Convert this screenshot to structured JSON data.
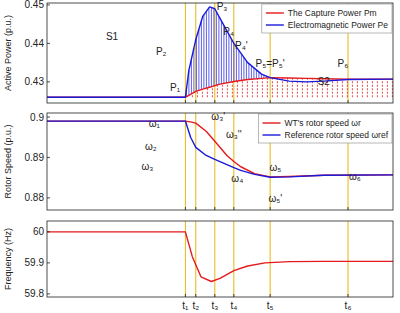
{
  "chart_data": [
    {
      "type": "line",
      "y_label": "Active Power (p.u.)",
      "x": [
        0,
        4,
        4.1,
        4.3,
        4.5,
        4.7,
        4.85,
        5,
        5.4,
        5.8,
        6.2,
        6.45,
        7,
        7.5,
        8,
        8.7,
        10
      ],
      "series": [
        {
          "name": "The Capture Power Pm",
          "color": "#e41a1c",
          "values": [
            0.426,
            0.426,
            0.4265,
            0.4275,
            0.4281,
            0.4286,
            0.429,
            0.4294,
            0.4301,
            0.4306,
            0.4309,
            0.4311,
            0.431,
            0.4309,
            0.4308,
            0.4307,
            0.4307
          ]
        },
        {
          "name": "Electromagnetic Power Pe",
          "color": "#1a1adb",
          "values": [
            0.426,
            0.426,
            0.433,
            0.441,
            0.447,
            0.4495,
            0.449,
            0.4465,
            0.44,
            0.435,
            0.432,
            0.4311,
            0.4302,
            0.43,
            0.4302,
            0.4306,
            0.4307
          ]
        }
      ],
      "xlim": [
        0,
        10
      ],
      "xticks": [
        {
          "value": 4,
          "label": "t₁"
        },
        {
          "value": 4.3,
          "label": "t₂"
        },
        {
          "value": 4.85,
          "label": "t₃"
        },
        {
          "value": 5.4,
          "label": "t₄"
        },
        {
          "value": 6.45,
          "label": "t₅"
        },
        {
          "value": 8.7,
          "label": "t₆"
        }
      ],
      "ylim": [
        0.4245,
        0.4505
      ],
      "yticks": [
        0.43,
        0.44,
        0.45
      ],
      "grid": "x",
      "tick_labels": "y",
      "legend": "upper right",
      "annotations": [
        {
          "text": "S1",
          "x": 1.88,
          "y": 0.4409
        },
        {
          "text": "P₁",
          "x": 3.7,
          "y": 0.4275
        },
        {
          "text": "P₂",
          "x": 3.3,
          "y": 0.437
        },
        {
          "text": "P₃",
          "x": 5.06,
          "y": 0.4487
        },
        {
          "text": "P₄",
          "x": 5.25,
          "y": 0.4422
        },
        {
          "text": "P₄'",
          "x": 5.62,
          "y": 0.4386
        },
        {
          "text": "P₅=P₅'",
          "x": 6.45,
          "y": 0.4338
        },
        {
          "text": "S2",
          "x": 8.0,
          "y": 0.4293
        },
        {
          "text": "P₆",
          "x": 8.55,
          "y": 0.4338
        }
      ]
    },
    {
      "type": "line",
      "y_label": "Rotor Speed (p.u.)",
      "x": [
        0,
        4,
        4.15,
        4.3,
        4.6,
        4.85,
        5.2,
        5.4,
        5.6,
        6,
        6.45,
        7,
        8,
        10
      ],
      "series": [
        {
          "name": "WT's rotor speed ωr",
          "color": "#e41a1c",
          "values": [
            0.899,
            0.899,
            0.8988,
            0.8985,
            0.8965,
            0.894,
            0.8905,
            0.889,
            0.8877,
            0.886,
            0.8852,
            0.8853,
            0.8856,
            0.8857
          ]
        },
        {
          "name": "Reference rotor speed ωref",
          "color": "#1a1adb",
          "values": [
            0.899,
            0.899,
            0.895,
            0.8925,
            0.8905,
            0.8895,
            0.8882,
            0.8875,
            0.8868,
            0.8858,
            0.8851,
            0.8852,
            0.8856,
            0.8857
          ]
        }
      ],
      "xlim": [
        0,
        10
      ],
      "xticks": [
        {
          "value": 4,
          "label": "t₁"
        },
        {
          "value": 4.3,
          "label": "t₂"
        },
        {
          "value": 4.85,
          "label": "t₃"
        },
        {
          "value": 5.4,
          "label": "t₄"
        },
        {
          "value": 6.45,
          "label": "t₅"
        },
        {
          "value": 8.7,
          "label": "t₆"
        }
      ],
      "ylim": [
        0.877,
        0.901
      ],
      "yticks": [
        0.88,
        0.89,
        0.9
      ],
      "grid": "x",
      "tick_labels": "y",
      "legend": "upper right",
      "annotations": [
        {
          "text": "ω₁",
          "x": 3.1,
          "y": 0.8975
        },
        {
          "text": "ω₂",
          "x": 3.0,
          "y": 0.8918
        },
        {
          "text": "ω₃",
          "x": 2.9,
          "y": 0.8869
        },
        {
          "text": "ω₃'",
          "x": 4.95,
          "y": 0.8993
        },
        {
          "text": "ω₃''",
          "x": 5.4,
          "y": 0.8948
        },
        {
          "text": "ω₄",
          "x": 5.5,
          "y": 0.8839
        },
        {
          "text": "ω₅",
          "x": 6.6,
          "y": 0.8866
        },
        {
          "text": "ω₅'",
          "x": 6.6,
          "y": 0.879
        },
        {
          "text": "ω₆",
          "x": 8.9,
          "y": 0.8843
        }
      ]
    },
    {
      "type": "line",
      "y_label": "Frequency (Hz)",
      "x": [
        0,
        4,
        4.2,
        4.45,
        4.75,
        5,
        5.4,
        5.8,
        6.3,
        7,
        8,
        10
      ],
      "series": [
        {
          "color": "#e41a1c",
          "values": [
            60,
            60,
            59.92,
            59.855,
            59.84,
            59.85,
            59.875,
            59.89,
            59.9,
            59.904,
            59.905,
            59.905
          ]
        }
      ],
      "xlim": [
        0,
        10
      ],
      "xticks": [
        {
          "value": 4,
          "label": "t₁"
        },
        {
          "value": 4.3,
          "label": "t₂"
        },
        {
          "value": 4.85,
          "label": "t₃"
        },
        {
          "value": 5.4,
          "label": "t₄"
        },
        {
          "value": 6.45,
          "label": "t₅"
        },
        {
          "value": 8.7,
          "label": "t₆"
        }
      ],
      "ylim": [
        59.79,
        60.035
      ],
      "yticks": [
        59.8,
        59.9,
        60
      ],
      "grid": "x",
      "tick_labels": true
    }
  ]
}
